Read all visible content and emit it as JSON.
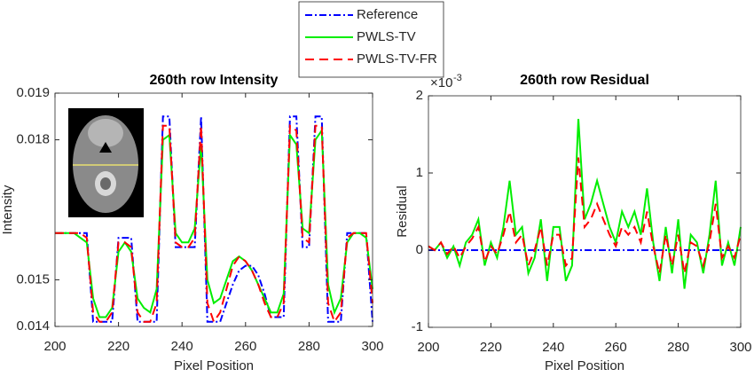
{
  "chart_data": [
    {
      "type": "line",
      "title": "260th row Intensity",
      "xlabel": "Pixel Position",
      "ylabel": "Intensity",
      "x": [
        200,
        202,
        204,
        206,
        208,
        210,
        212,
        214,
        216,
        218,
        220,
        222,
        224,
        226,
        228,
        230,
        232,
        234,
        236,
        238,
        240,
        242,
        244,
        246,
        248,
        250,
        252,
        254,
        256,
        258,
        260,
        262,
        264,
        266,
        268,
        270,
        272,
        274,
        276,
        278,
        280,
        282,
        284,
        286,
        288,
        290,
        292,
        294,
        296,
        298,
        300
      ],
      "xlim": [
        200,
        300
      ],
      "xticks": [
        200,
        220,
        240,
        260,
        280,
        300
      ],
      "ylim": [
        0.014,
        0.019
      ],
      "yticks": [
        0.014,
        0.015,
        0.018,
        0.019
      ],
      "series": [
        {
          "name": "Reference",
          "color": "#0000ff",
          "dash": "dashdot",
          "values": [
            0.016,
            0.016,
            0.016,
            0.016,
            0.016,
            0.016,
            0.0141,
            0.0141,
            0.0141,
            0.0141,
            0.0159,
            0.0159,
            0.0159,
            0.0141,
            0.0141,
            0.0141,
            0.0141,
            0.0185,
            0.0185,
            0.0157,
            0.0157,
            0.0157,
            0.0157,
            0.0185,
            0.0141,
            0.0141,
            0.0141,
            0.0145,
            0.0149,
            0.0152,
            0.0153,
            0.0153,
            0.0151,
            0.0147,
            0.0142,
            0.0142,
            0.0142,
            0.0185,
            0.0185,
            0.0157,
            0.0157,
            0.0185,
            0.0185,
            0.0141,
            0.0141,
            0.0141,
            0.016,
            0.016,
            0.016,
            0.016,
            0.0141
          ]
        },
        {
          "name": "PWLS-TV",
          "color": "#00ee00",
          "dash": "solid",
          "values": [
            0.016,
            0.016,
            0.016,
            0.016,
            0.0159,
            0.0158,
            0.0146,
            0.0142,
            0.0142,
            0.0144,
            0.0156,
            0.0158,
            0.0156,
            0.0146,
            0.0144,
            0.0143,
            0.0148,
            0.018,
            0.0181,
            0.016,
            0.0158,
            0.0158,
            0.0161,
            0.0179,
            0.015,
            0.0145,
            0.0146,
            0.015,
            0.0154,
            0.0155,
            0.0154,
            0.0152,
            0.0149,
            0.0146,
            0.0143,
            0.0143,
            0.0147,
            0.0181,
            0.0179,
            0.0161,
            0.016,
            0.018,
            0.0182,
            0.0149,
            0.0143,
            0.0146,
            0.0158,
            0.016,
            0.016,
            0.0159,
            0.0148
          ]
        },
        {
          "name": "PWLS-TV-FR",
          "color": "#ff0000",
          "dash": "dashed",
          "values": [
            0.016,
            0.016,
            0.016,
            0.016,
            0.016,
            0.0159,
            0.0143,
            0.0141,
            0.0141,
            0.0143,
            0.0158,
            0.0158,
            0.0157,
            0.0143,
            0.0141,
            0.0141,
            0.0145,
            0.0183,
            0.0183,
            0.0158,
            0.0157,
            0.0157,
            0.0159,
            0.0183,
            0.0145,
            0.0141,
            0.0143,
            0.0148,
            0.0153,
            0.0155,
            0.0154,
            0.0152,
            0.0149,
            0.0145,
            0.0142,
            0.0142,
            0.0145,
            0.0183,
            0.0182,
            0.0159,
            0.0158,
            0.0183,
            0.0183,
            0.0145,
            0.0141,
            0.0143,
            0.0159,
            0.016,
            0.016,
            0.016,
            0.0145
          ]
        }
      ]
    },
    {
      "type": "line",
      "title": "260th row Residual",
      "xlabel": "Pixel Position",
      "ylabel": "Residual",
      "y_multiplier": {
        "base": "×10",
        "exponent": "-3"
      },
      "x": [
        200,
        202,
        204,
        206,
        208,
        210,
        212,
        214,
        216,
        218,
        220,
        222,
        224,
        226,
        228,
        230,
        232,
        234,
        236,
        238,
        240,
        242,
        244,
        246,
        248,
        250,
        252,
        254,
        256,
        258,
        260,
        262,
        264,
        266,
        268,
        270,
        272,
        274,
        276,
        278,
        280,
        282,
        284,
        286,
        288,
        290,
        292,
        294,
        296,
        298,
        300
      ],
      "xlim": [
        200,
        300
      ],
      "xticks": [
        200,
        220,
        240,
        260,
        280,
        300
      ],
      "ylim": [
        -1,
        2
      ],
      "yticks": [
        -1,
        0,
        1,
        2
      ],
      "series": [
        {
          "name": "Reference",
          "color": "#0000ff",
          "dash": "dashdot",
          "values": [
            0,
            0,
            0,
            0,
            0,
            0,
            0,
            0,
            0,
            0,
            0,
            0,
            0,
            0,
            0,
            0,
            0,
            0,
            0,
            0,
            0,
            0,
            0,
            0,
            0,
            0,
            0,
            0,
            0,
            0,
            0,
            0,
            0,
            0,
            0,
            0,
            0,
            0,
            0,
            0,
            0,
            0,
            0,
            0,
            0,
            0,
            0,
            0,
            0,
            0,
            0
          ]
        },
        {
          "name": "PWLS-TV",
          "color": "#00ee00",
          "dash": "solid",
          "values": [
            0.05,
            0,
            0.1,
            -0.1,
            0.05,
            -0.2,
            0.1,
            0.2,
            0.4,
            -0.2,
            0.1,
            -0.1,
            0.3,
            0.9,
            0.2,
            0.3,
            -0.3,
            -0.1,
            0.4,
            -0.4,
            0.3,
            0.3,
            -0.4,
            -0.2,
            1.7,
            0.4,
            0.6,
            0.9,
            0.6,
            0.3,
            0.1,
            0.5,
            0.3,
            0.5,
            0.2,
            0.8,
            0.1,
            -0.4,
            0.3,
            -0.3,
            0.4,
            -0.5,
            0.2,
            0.1,
            -0.3,
            0.2,
            0.9,
            -0.2,
            0.1,
            -0.2,
            0.3
          ]
        },
        {
          "name": "PWLS-TV-FR",
          "color": "#ff0000",
          "dash": "dashed",
          "values": [
            0.05,
            0,
            0.1,
            -0.05,
            0.05,
            -0.1,
            0.05,
            0.15,
            0.3,
            -0.15,
            0.05,
            -0.05,
            0.2,
            0.5,
            0.1,
            0.2,
            -0.2,
            0,
            0.3,
            -0.2,
            0.2,
            0.2,
            -0.2,
            -0.1,
            1.2,
            0.3,
            0.4,
            0.6,
            0.4,
            0.2,
            0.05,
            0.3,
            0.2,
            0.3,
            0.1,
            0.5,
            0.05,
            -0.3,
            0.2,
            -0.2,
            0.2,
            -0.3,
            0.1,
            0.05,
            -0.2,
            0.1,
            0.6,
            -0.1,
            0.05,
            -0.1,
            0.2
          ]
        }
      ]
    }
  ]
}
